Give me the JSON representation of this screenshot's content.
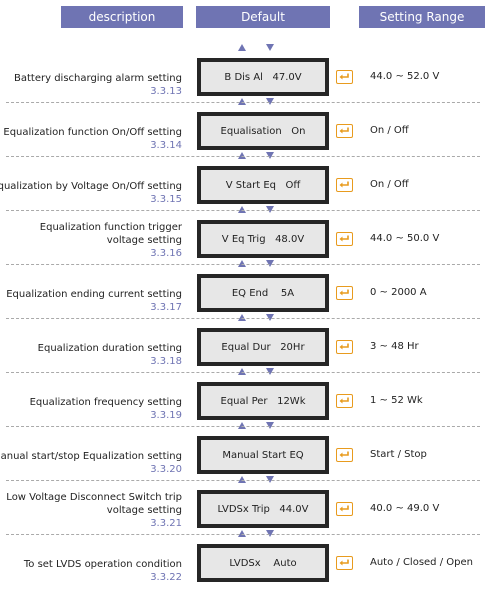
{
  "header": {
    "description": "description",
    "default": "Default",
    "range": "Setting Range"
  },
  "rows": [
    {
      "desc": [
        "Battery discharging alarm setting"
      ],
      "code": "3.3.13",
      "lcd": "B Dis Al   47.0V",
      "range": "44.0 ~ 52.0  V"
    },
    {
      "desc": [
        "Equalization function On/Off setting"
      ],
      "code": "3.3.14",
      "lcd": "Equalisation   On",
      "range": "On / Off"
    },
    {
      "desc": [
        "Equalization by Voltage On/Off setting"
      ],
      "code": "3.3.15",
      "lcd": "V Start Eq   Off",
      "range": "On / Off"
    },
    {
      "desc": [
        "Equalization function trigger",
        "voltage setting"
      ],
      "code": "3.3.16",
      "lcd": "V Eq Trig   48.0V",
      "range": "44.0 ~ 50.0  V"
    },
    {
      "desc": [
        "Equalization ending current setting"
      ],
      "code": "3.3.17",
      "lcd": "EQ End    5A",
      "range": "0 ~ 2000 A"
    },
    {
      "desc": [
        "Equalization duration setting"
      ],
      "code": "3.3.18",
      "lcd": "Equal Dur   20Hr",
      "range": "3 ~ 48 Hr"
    },
    {
      "desc": [
        "Equalization frequency setting"
      ],
      "code": "3.3.19",
      "lcd": "Equal Per   12Wk",
      "range": "1 ~ 52 Wk"
    },
    {
      "desc": [
        "Manual start/stop Equalization setting"
      ],
      "code": "3.3.20",
      "lcd": "Manual Start EQ",
      "range": "Start / Stop"
    },
    {
      "desc": [
        "Low Voltage Disconnect Switch trip",
        "voltage setting"
      ],
      "code": "3.3.21",
      "lcd": "LVDSx Trip   44.0V",
      "range": "40.0 ~ 49.0 V"
    },
    {
      "desc": [
        "To set LVDS operation condition"
      ],
      "code": "3.3.22",
      "lcd": "LVDSx    Auto",
      "range": "Auto / Closed / Open"
    }
  ]
}
